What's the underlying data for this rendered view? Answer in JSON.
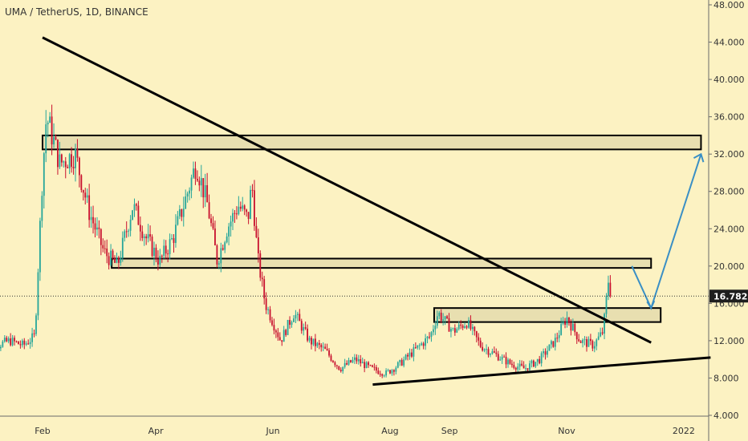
{
  "header": {
    "title": "UMA / TetherUS, 1D, BINANCE"
  },
  "colors": {
    "background": "#fcf2c2",
    "up": "#26a69a",
    "down": "#c8102e",
    "trendline": "#000000",
    "zone_fill": "#e8dfb0",
    "projection": "#3a8fc5",
    "price_label_bg": "#1e1e1e"
  },
  "chart_data": {
    "type": "candlestick",
    "symbol": "UMA / TetherUS",
    "interval": "1D",
    "exchange": "BINANCE",
    "y_ticks": [
      "48.000",
      "44.000",
      "40.000",
      "36.000",
      "32.000",
      "28.000",
      "24.000",
      "20.000",
      "16.000",
      "12.000",
      "8.000",
      "4.000"
    ],
    "x_ticks": [
      "Feb",
      "Apr",
      "Jun",
      "Aug",
      "Sep",
      "Nov",
      "2022"
    ],
    "current_price": "16.782",
    "ylim": [
      4,
      48
    ],
    "price_path": [
      {
        "date": "2021-01-01",
        "price": 9.5
      },
      {
        "date": "2021-01-08",
        "price": 11.5
      },
      {
        "date": "2021-01-15",
        "price": 12.0
      },
      {
        "date": "2021-01-22",
        "price": 11.5
      },
      {
        "date": "2021-01-28",
        "price": 12.5
      },
      {
        "date": "2021-02-01",
        "price": 30.0
      },
      {
        "date": "2021-02-03",
        "price": 36.0
      },
      {
        "date": "2021-02-06",
        "price": 34.0
      },
      {
        "date": "2021-02-10",
        "price": 31.0
      },
      {
        "date": "2021-02-18",
        "price": 32.0
      },
      {
        "date": "2021-02-25",
        "price": 26.0
      },
      {
        "date": "2021-03-05",
        "price": 21.5
      },
      {
        "date": "2021-03-12",
        "price": 20.0
      },
      {
        "date": "2021-03-20",
        "price": 26.5
      },
      {
        "date": "2021-03-27",
        "price": 23.0
      },
      {
        "date": "2021-04-03",
        "price": 20.5
      },
      {
        "date": "2021-04-10",
        "price": 23.0
      },
      {
        "date": "2021-04-17",
        "price": 27.5
      },
      {
        "date": "2021-04-22",
        "price": 31.0
      },
      {
        "date": "2021-04-28",
        "price": 26.5
      },
      {
        "date": "2021-05-03",
        "price": 20.5
      },
      {
        "date": "2021-05-08",
        "price": 24.0
      },
      {
        "date": "2021-05-14",
        "price": 26.5
      },
      {
        "date": "2021-05-19",
        "price": 25.0
      },
      {
        "date": "2021-05-21",
        "price": 29.0
      },
      {
        "date": "2021-05-24",
        "price": 21.0
      },
      {
        "date": "2021-05-28",
        "price": 16.0
      },
      {
        "date": "2021-06-05",
        "price": 12.0
      },
      {
        "date": "2021-06-12",
        "price": 15.0
      },
      {
        "date": "2021-06-20",
        "price": 12.0
      },
      {
        "date": "2021-06-28",
        "price": 11.0
      },
      {
        "date": "2021-07-06",
        "price": 9.0
      },
      {
        "date": "2021-07-14",
        "price": 10.0
      },
      {
        "date": "2021-07-22",
        "price": 9.0
      },
      {
        "date": "2021-07-30",
        "price": 8.5
      },
      {
        "date": "2021-08-06",
        "price": 9.5
      },
      {
        "date": "2021-08-14",
        "price": 11.0
      },
      {
        "date": "2021-08-22",
        "price": 12.5
      },
      {
        "date": "2021-08-26",
        "price": 15.0
      },
      {
        "date": "2021-09-03",
        "price": 13.0
      },
      {
        "date": "2021-09-10",
        "price": 14.0
      },
      {
        "date": "2021-09-17",
        "price": 11.5
      },
      {
        "date": "2021-09-25",
        "price": 10.5
      },
      {
        "date": "2021-10-03",
        "price": 9.5
      },
      {
        "date": "2021-10-10",
        "price": 9.0
      },
      {
        "date": "2021-10-18",
        "price": 10.0
      },
      {
        "date": "2021-10-26",
        "price": 12.0
      },
      {
        "date": "2021-11-01",
        "price": 14.5
      },
      {
        "date": "2021-11-08",
        "price": 12.0
      },
      {
        "date": "2021-11-15",
        "price": 11.5
      },
      {
        "date": "2021-11-20",
        "price": 13.0
      },
      {
        "date": "2021-11-23",
        "price": 19.0
      },
      {
        "date": "2021-11-24",
        "price": 16.8
      }
    ],
    "annotations": {
      "resistance_zones": [
        {
          "from": "2021-02-01",
          "to": "2022-01-10",
          "low": 32.5,
          "high": 34.0
        },
        {
          "from": "2021-03-09",
          "to": "2021-12-15",
          "low": 19.8,
          "high": 20.8
        },
        {
          "from": "2021-08-24",
          "to": "2021-12-20",
          "low": 14.0,
          "high": 15.5
        }
      ],
      "downtrend_line": {
        "from": {
          "date": "2021-02-01",
          "price": 44.5
        },
        "to": {
          "date": "2021-12-15",
          "price": 11.8
        }
      },
      "uptrend_line": {
        "from": {
          "date": "2021-07-23",
          "price": 7.3
        },
        "to": {
          "date": "2022-01-15",
          "price": 10.2
        }
      },
      "projection_path": [
        {
          "date": "2021-12-05",
          "price": 20.0
        },
        {
          "date": "2021-12-15",
          "price": 15.5
        },
        {
          "date": "2022-01-10",
          "price": 32.0
        }
      ]
    }
  }
}
